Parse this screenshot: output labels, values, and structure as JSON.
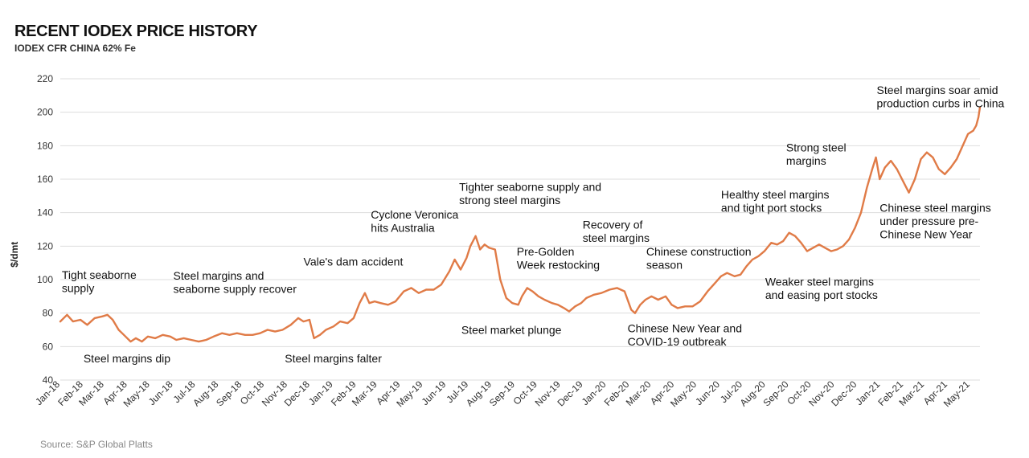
{
  "title": "RECENT IODEX PRICE HISTORY",
  "subtitle": "IODEX CFR CHINA 62% Fe",
  "source": "Source: S&P Global Platts",
  "colors": {
    "line": "#e07b47",
    "grid": "#dddddd"
  },
  "chart_data": {
    "type": "line",
    "ylabel": "$/dmt",
    "ylim": [
      40,
      220
    ],
    "yticks": [
      40,
      60,
      80,
      100,
      120,
      140,
      160,
      180,
      200,
      220
    ],
    "x_range": [
      "2018-01-01",
      "2021-05-14"
    ],
    "xticks": [
      {
        "date": "2018-01-01",
        "label": "Jan-18"
      },
      {
        "date": "2018-02-01",
        "label": "Feb-18"
      },
      {
        "date": "2018-03-01",
        "label": "Mar-18"
      },
      {
        "date": "2018-04-01",
        "label": "Apr-18"
      },
      {
        "date": "2018-05-01",
        "label": "May-18"
      },
      {
        "date": "2018-06-01",
        "label": "Jun-18"
      },
      {
        "date": "2018-07-01",
        "label": "Jul-18"
      },
      {
        "date": "2018-08-01",
        "label": "Aug-18"
      },
      {
        "date": "2018-09-01",
        "label": "Sep-18"
      },
      {
        "date": "2018-10-01",
        "label": "Oct-18"
      },
      {
        "date": "2018-11-01",
        "label": "Nov-18"
      },
      {
        "date": "2018-12-01",
        "label": "Dec-18"
      },
      {
        "date": "2019-01-01",
        "label": "Jan-19"
      },
      {
        "date": "2019-02-01",
        "label": "Feb-19"
      },
      {
        "date": "2019-03-01",
        "label": "Mar-19"
      },
      {
        "date": "2019-04-01",
        "label": "Apr-19"
      },
      {
        "date": "2019-05-01",
        "label": "May-19"
      },
      {
        "date": "2019-06-01",
        "label": "Jun-19"
      },
      {
        "date": "2019-07-01",
        "label": "Jul-19"
      },
      {
        "date": "2019-08-01",
        "label": "Aug-19"
      },
      {
        "date": "2019-09-01",
        "label": "Sep-19"
      },
      {
        "date": "2019-10-01",
        "label": "Oct-19"
      },
      {
        "date": "2019-11-01",
        "label": "Nov-19"
      },
      {
        "date": "2019-12-01",
        "label": "Dec-19"
      },
      {
        "date": "2020-01-01",
        "label": "Jan-20"
      },
      {
        "date": "2020-02-01",
        "label": "Feb-20"
      },
      {
        "date": "2020-03-01",
        "label": "Mar-20"
      },
      {
        "date": "2020-04-01",
        "label": "Apr-20"
      },
      {
        "date": "2020-05-01",
        "label": "May-20"
      },
      {
        "date": "2020-06-01",
        "label": "Jun-20"
      },
      {
        "date": "2020-07-01",
        "label": "Jul-20"
      },
      {
        "date": "2020-08-01",
        "label": "Aug-20"
      },
      {
        "date": "2020-09-01",
        "label": "Sep-20"
      },
      {
        "date": "2020-10-01",
        "label": "Oct-20"
      },
      {
        "date": "2020-11-01",
        "label": "Nov-20"
      },
      {
        "date": "2020-12-01",
        "label": "Dec-20"
      },
      {
        "date": "2021-01-01",
        "label": "Jan-21"
      },
      {
        "date": "2021-02-01",
        "label": "Feb-21"
      },
      {
        "date": "2021-03-01",
        "label": "Mar-21"
      },
      {
        "date": "2021-04-01",
        "label": "Apr-21"
      },
      {
        "date": "2021-05-01",
        "label": "May-21"
      }
    ],
    "grid": true,
    "series": [
      {
        "points": [
          [
            "2018-01-01",
            75
          ],
          [
            "2018-01-10",
            79
          ],
          [
            "2018-01-18",
            75
          ],
          [
            "2018-01-28",
            76
          ],
          [
            "2018-02-06",
            73
          ],
          [
            "2018-02-16",
            77
          ],
          [
            "2018-02-26",
            78
          ],
          [
            "2018-03-05",
            79
          ],
          [
            "2018-03-12",
            76
          ],
          [
            "2018-03-20",
            70
          ],
          [
            "2018-03-27",
            67
          ],
          [
            "2018-04-05",
            63
          ],
          [
            "2018-04-12",
            65
          ],
          [
            "2018-04-20",
            63
          ],
          [
            "2018-04-28",
            66
          ],
          [
            "2018-05-08",
            65
          ],
          [
            "2018-05-18",
            67
          ],
          [
            "2018-05-28",
            66
          ],
          [
            "2018-06-05",
            64
          ],
          [
            "2018-06-15",
            65
          ],
          [
            "2018-06-25",
            64
          ],
          [
            "2018-07-05",
            63
          ],
          [
            "2018-07-15",
            64
          ],
          [
            "2018-07-25",
            66
          ],
          [
            "2018-08-05",
            68
          ],
          [
            "2018-08-15",
            67
          ],
          [
            "2018-08-25",
            68
          ],
          [
            "2018-09-05",
            67
          ],
          [
            "2018-09-15",
            67
          ],
          [
            "2018-09-25",
            68
          ],
          [
            "2018-10-05",
            70
          ],
          [
            "2018-10-15",
            69
          ],
          [
            "2018-10-25",
            70
          ],
          [
            "2018-11-05",
            73
          ],
          [
            "2018-11-15",
            77
          ],
          [
            "2018-11-22",
            75
          ],
          [
            "2018-11-30",
            76
          ],
          [
            "2018-12-06",
            65
          ],
          [
            "2018-12-14",
            67
          ],
          [
            "2018-12-22",
            70
          ],
          [
            "2019-01-01",
            72
          ],
          [
            "2019-01-10",
            75
          ],
          [
            "2019-01-20",
            74
          ],
          [
            "2019-01-28",
            77
          ],
          [
            "2019-02-05",
            86
          ],
          [
            "2019-02-12",
            92
          ],
          [
            "2019-02-18",
            86
          ],
          [
            "2019-02-25",
            87
          ],
          [
            "2019-03-05",
            86
          ],
          [
            "2019-03-15",
            85
          ],
          [
            "2019-03-25",
            87
          ],
          [
            "2019-04-05",
            93
          ],
          [
            "2019-04-15",
            95
          ],
          [
            "2019-04-25",
            92
          ],
          [
            "2019-05-05",
            94
          ],
          [
            "2019-05-15",
            94
          ],
          [
            "2019-05-25",
            97
          ],
          [
            "2019-06-05",
            105
          ],
          [
            "2019-06-12",
            112
          ],
          [
            "2019-06-20",
            106
          ],
          [
            "2019-06-28",
            113
          ],
          [
            "2019-07-03",
            120
          ],
          [
            "2019-07-10",
            126
          ],
          [
            "2019-07-16",
            118
          ],
          [
            "2019-07-22",
            121
          ],
          [
            "2019-07-28",
            119
          ],
          [
            "2019-08-05",
            118
          ],
          [
            "2019-08-12",
            100
          ],
          [
            "2019-08-20",
            89
          ],
          [
            "2019-08-28",
            86
          ],
          [
            "2019-09-05",
            85
          ],
          [
            "2019-09-10",
            90
          ],
          [
            "2019-09-17",
            95
          ],
          [
            "2019-09-24",
            93
          ],
          [
            "2019-10-02",
            90
          ],
          [
            "2019-10-10",
            88
          ],
          [
            "2019-10-20",
            86
          ],
          [
            "2019-10-28",
            85
          ],
          [
            "2019-11-05",
            83
          ],
          [
            "2019-11-12",
            81
          ],
          [
            "2019-11-20",
            84
          ],
          [
            "2019-11-28",
            86
          ],
          [
            "2019-12-05",
            89
          ],
          [
            "2019-12-15",
            91
          ],
          [
            "2019-12-25",
            92
          ],
          [
            "2020-01-05",
            94
          ],
          [
            "2020-01-15",
            95
          ],
          [
            "2020-01-25",
            93
          ],
          [
            "2020-02-03",
            82
          ],
          [
            "2020-02-08",
            80
          ],
          [
            "2020-02-15",
            85
          ],
          [
            "2020-02-22",
            88
          ],
          [
            "2020-03-01",
            90
          ],
          [
            "2020-03-10",
            88
          ],
          [
            "2020-03-20",
            90
          ],
          [
            "2020-03-28",
            85
          ],
          [
            "2020-04-05",
            83
          ],
          [
            "2020-04-15",
            84
          ],
          [
            "2020-04-25",
            84
          ],
          [
            "2020-05-05",
            87
          ],
          [
            "2020-05-15",
            93
          ],
          [
            "2020-05-25",
            98
          ],
          [
            "2020-06-02",
            102
          ],
          [
            "2020-06-10",
            104
          ],
          [
            "2020-06-20",
            102
          ],
          [
            "2020-06-28",
            103
          ],
          [
            "2020-07-06",
            108
          ],
          [
            "2020-07-14",
            112
          ],
          [
            "2020-07-22",
            114
          ],
          [
            "2020-07-30",
            117
          ],
          [
            "2020-08-08",
            122
          ],
          [
            "2020-08-16",
            121
          ],
          [
            "2020-08-24",
            123
          ],
          [
            "2020-09-01",
            128
          ],
          [
            "2020-09-09",
            126
          ],
          [
            "2020-09-17",
            122
          ],
          [
            "2020-09-25",
            117
          ],
          [
            "2020-10-03",
            119
          ],
          [
            "2020-10-11",
            121
          ],
          [
            "2020-10-19",
            119
          ],
          [
            "2020-10-27",
            117
          ],
          [
            "2020-11-04",
            118
          ],
          [
            "2020-11-12",
            120
          ],
          [
            "2020-11-20",
            124
          ],
          [
            "2020-11-28",
            131
          ],
          [
            "2020-12-06",
            140
          ],
          [
            "2020-12-14",
            155
          ],
          [
            "2020-12-21",
            166
          ],
          [
            "2020-12-26",
            173
          ],
          [
            "2020-12-31",
            160
          ],
          [
            "2021-01-07",
            167
          ],
          [
            "2021-01-15",
            171
          ],
          [
            "2021-01-23",
            166
          ],
          [
            "2021-01-31",
            159
          ],
          [
            "2021-02-08",
            152
          ],
          [
            "2021-02-16",
            160
          ],
          [
            "2021-02-24",
            172
          ],
          [
            "2021-03-04",
            176
          ],
          [
            "2021-03-12",
            173
          ],
          [
            "2021-03-20",
            166
          ],
          [
            "2021-03-28",
            163
          ],
          [
            "2021-04-05",
            167
          ],
          [
            "2021-04-13",
            172
          ],
          [
            "2021-04-21",
            180
          ],
          [
            "2021-04-28",
            187
          ],
          [
            "2021-05-05",
            189
          ],
          [
            "2021-05-09",
            192
          ],
          [
            "2021-05-12",
            197
          ],
          [
            "2021-05-14",
            203
          ]
        ]
      }
    ],
    "annotations": [
      {
        "lines": [
          "Tight seaborne",
          "supply"
        ],
        "date": "2018-01-03",
        "y": 100.5
      },
      {
        "lines": [
          "Steel margins dip"
        ],
        "date": "2018-02-01",
        "y": 50.5
      },
      {
        "lines": [
          "Steel margins and",
          "seaborne supply recover"
        ],
        "date": "2018-06-01",
        "y": 100
      },
      {
        "lines": [
          "Steel margins falter"
        ],
        "date": "2018-10-28",
        "y": 50.5
      },
      {
        "lines": [
          "Vale's dam accident"
        ],
        "date": "2018-11-22",
        "y": 108.5
      },
      {
        "lines": [
          "Cyclone Veronica",
          "hits Australia"
        ],
        "date": "2019-02-20",
        "y": 136.5
      },
      {
        "lines": [
          "Tighter seaborne supply and",
          "strong steel margins"
        ],
        "date": "2019-06-18",
        "y": 153
      },
      {
        "lines": [
          "Steel market plunge"
        ],
        "date": "2019-06-21",
        "y": 67.5
      },
      {
        "lines": [
          "Pre-Golden",
          "Week restocking"
        ],
        "date": "2019-09-03",
        "y": 114.5
      },
      {
        "lines": [
          "Recovery of",
          "steel margins"
        ],
        "date": "2019-11-30",
        "y": 130.5
      },
      {
        "lines": [
          "Chinese construction",
          "season"
        ],
        "date": "2020-02-23",
        "y": 114.5
      },
      {
        "lines": [
          "Chinese New Year and",
          "COVID-19 outbreak"
        ],
        "date": "2020-01-29",
        "y": 68.5
      },
      {
        "lines": [
          "Healthy steel margins",
          "and tight port stocks"
        ],
        "date": "2020-06-02",
        "y": 148.5
      },
      {
        "lines": [
          "Weaker steel margins",
          "and  easing port stocks"
        ],
        "date": "2020-07-31",
        "y": 96.5
      },
      {
        "lines": [
          "Strong steel",
          "margins"
        ],
        "date": "2020-08-28",
        "y": 176.5
      },
      {
        "lines": [
          "Steel margins soar amid",
          "production curbs in China"
        ],
        "date": "2020-12-27",
        "y": 211
      },
      {
        "lines": [
          "Chinese steel margins",
          "under pressure pre-",
          "Chinese New Year"
        ],
        "date": "2020-12-31",
        "y": 140.5
      }
    ]
  }
}
